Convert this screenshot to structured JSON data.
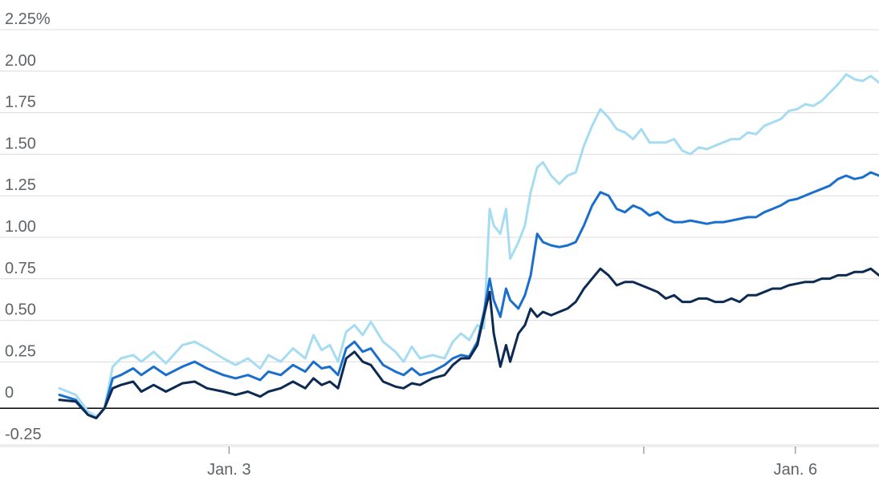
{
  "chart_data": {
    "type": "line",
    "title": "",
    "xlabel": "",
    "ylabel": "",
    "y_unit_suffix": "%",
    "ylim": [
      -0.25,
      2.25
    ],
    "xlim": [
      0,
      100
    ],
    "grid": true,
    "legend": "none",
    "y_ticks": [
      {
        "value": 2.25,
        "label": "2.25%"
      },
      {
        "value": 2.0,
        "label": "2.00"
      },
      {
        "value": 1.75,
        "label": "1.75"
      },
      {
        "value": 1.5,
        "label": "1.50"
      },
      {
        "value": 1.25,
        "label": "1.25"
      },
      {
        "value": 1.0,
        "label": "1.00"
      },
      {
        "value": 0.75,
        "label": "0.75"
      },
      {
        "value": 0.5,
        "label": "0.50"
      },
      {
        "value": 0.25,
        "label": "0.25"
      },
      {
        "value": 0,
        "label": "0"
      },
      {
        "value": -0.25,
        "label": "-0.25"
      }
    ],
    "x_ticks": [
      {
        "x": 20.7,
        "label": "Jan. 3"
      },
      {
        "x": 71.3,
        "label": ""
      },
      {
        "x": 89.8,
        "label": "Jan. 6"
      }
    ],
    "series": [
      {
        "color": "#a6dcf2",
        "points": [
          [
            0,
            0.12
          ],
          [
            2,
            0.08
          ],
          [
            3.5,
            -0.02
          ],
          [
            4.5,
            -0.05
          ],
          [
            5.5,
            0.0
          ],
          [
            6.5,
            0.25
          ],
          [
            7.5,
            0.3
          ],
          [
            9,
            0.32
          ],
          [
            10,
            0.28
          ],
          [
            11.5,
            0.34
          ],
          [
            13,
            0.27
          ],
          [
            15,
            0.38
          ],
          [
            16.5,
            0.4
          ],
          [
            18,
            0.36
          ],
          [
            20,
            0.3
          ],
          [
            21.5,
            0.26
          ],
          [
            23,
            0.3
          ],
          [
            24.5,
            0.24
          ],
          [
            25.5,
            0.32
          ],
          [
            27,
            0.28
          ],
          [
            28.5,
            0.36
          ],
          [
            30,
            0.3
          ],
          [
            31,
            0.44
          ],
          [
            32,
            0.35
          ],
          [
            33,
            0.38
          ],
          [
            34,
            0.28
          ],
          [
            35,
            0.46
          ],
          [
            36,
            0.5
          ],
          [
            37,
            0.44
          ],
          [
            38,
            0.52
          ],
          [
            39.5,
            0.4
          ],
          [
            41,
            0.34
          ],
          [
            42,
            0.28
          ],
          [
            43,
            0.37
          ],
          [
            44,
            0.3
          ],
          [
            45.5,
            0.32
          ],
          [
            47,
            0.3
          ],
          [
            48,
            0.4
          ],
          [
            49,
            0.45
          ],
          [
            50,
            0.41
          ],
          [
            51,
            0.5
          ],
          [
            51.8,
            0.48
          ],
          [
            52.5,
            1.2
          ],
          [
            53,
            1.1
          ],
          [
            53.8,
            1.05
          ],
          [
            54.5,
            1.2
          ],
          [
            55,
            0.9
          ],
          [
            56,
            1.0
          ],
          [
            56.8,
            1.1
          ],
          [
            57.5,
            1.3
          ],
          [
            58.3,
            1.45
          ],
          [
            59,
            1.48
          ],
          [
            60,
            1.4
          ],
          [
            61,
            1.35
          ],
          [
            62,
            1.4
          ],
          [
            63,
            1.42
          ],
          [
            64,
            1.58
          ],
          [
            65,
            1.7
          ],
          [
            66,
            1.8
          ],
          [
            67,
            1.75
          ],
          [
            68,
            1.68
          ],
          [
            69,
            1.66
          ],
          [
            70,
            1.62
          ],
          [
            71,
            1.68
          ],
          [
            72,
            1.6
          ],
          [
            73,
            1.6
          ],
          [
            74,
            1.6
          ],
          [
            75,
            1.62
          ],
          [
            76,
            1.55
          ],
          [
            77,
            1.53
          ],
          [
            78,
            1.57
          ],
          [
            79,
            1.56
          ],
          [
            80,
            1.58
          ],
          [
            81,
            1.6
          ],
          [
            82,
            1.62
          ],
          [
            83,
            1.62
          ],
          [
            84,
            1.66
          ],
          [
            85,
            1.65
          ],
          [
            86,
            1.7
          ],
          [
            87,
            1.72
          ],
          [
            88,
            1.74
          ],
          [
            89,
            1.79
          ],
          [
            90,
            1.8
          ],
          [
            91,
            1.83
          ],
          [
            92,
            1.82
          ],
          [
            93,
            1.85
          ],
          [
            94,
            1.9
          ],
          [
            95,
            1.95
          ],
          [
            96,
            2.01
          ],
          [
            97,
            1.98
          ],
          [
            98,
            1.97
          ],
          [
            99,
            2.0
          ],
          [
            100,
            1.96
          ]
        ]
      },
      {
        "color": "#1a6fcd",
        "points": [
          [
            0,
            0.08
          ],
          [
            2,
            0.05
          ],
          [
            3.5,
            -0.04
          ],
          [
            4.5,
            -0.06
          ],
          [
            5.5,
            0.0
          ],
          [
            6.5,
            0.18
          ],
          [
            7.5,
            0.2
          ],
          [
            9,
            0.24
          ],
          [
            10,
            0.2
          ],
          [
            11.5,
            0.25
          ],
          [
            13,
            0.2
          ],
          [
            15,
            0.25
          ],
          [
            16.5,
            0.28
          ],
          [
            18,
            0.24
          ],
          [
            20,
            0.2
          ],
          [
            21.5,
            0.18
          ],
          [
            23,
            0.2
          ],
          [
            24.5,
            0.17
          ],
          [
            25.5,
            0.22
          ],
          [
            27,
            0.2
          ],
          [
            28.5,
            0.26
          ],
          [
            30,
            0.22
          ],
          [
            31,
            0.28
          ],
          [
            32,
            0.24
          ],
          [
            33,
            0.25
          ],
          [
            34,
            0.2
          ],
          [
            35,
            0.36
          ],
          [
            36,
            0.4
          ],
          [
            37,
            0.34
          ],
          [
            38,
            0.36
          ],
          [
            39.5,
            0.26
          ],
          [
            41,
            0.22
          ],
          [
            42,
            0.2
          ],
          [
            43,
            0.24
          ],
          [
            44,
            0.2
          ],
          [
            45.5,
            0.22
          ],
          [
            47,
            0.26
          ],
          [
            48,
            0.3
          ],
          [
            49,
            0.32
          ],
          [
            50,
            0.31
          ],
          [
            51,
            0.4
          ],
          [
            51.8,
            0.58
          ],
          [
            52.5,
            0.78
          ],
          [
            53,
            0.65
          ],
          [
            53.8,
            0.55
          ],
          [
            54.5,
            0.72
          ],
          [
            55,
            0.65
          ],
          [
            56,
            0.6
          ],
          [
            56.8,
            0.68
          ],
          [
            57.5,
            0.8
          ],
          [
            58.3,
            1.05
          ],
          [
            59,
            1.0
          ],
          [
            60,
            0.98
          ],
          [
            61,
            0.97
          ],
          [
            62,
            0.98
          ],
          [
            63,
            1.0
          ],
          [
            64,
            1.1
          ],
          [
            65,
            1.22
          ],
          [
            66,
            1.3
          ],
          [
            67,
            1.28
          ],
          [
            68,
            1.2
          ],
          [
            69,
            1.18
          ],
          [
            70,
            1.22
          ],
          [
            71,
            1.2
          ],
          [
            72,
            1.16
          ],
          [
            73,
            1.18
          ],
          [
            74,
            1.14
          ],
          [
            75,
            1.12
          ],
          [
            76,
            1.12
          ],
          [
            77,
            1.13
          ],
          [
            78,
            1.12
          ],
          [
            79,
            1.11
          ],
          [
            80,
            1.12
          ],
          [
            81,
            1.12
          ],
          [
            82,
            1.13
          ],
          [
            83,
            1.14
          ],
          [
            84,
            1.15
          ],
          [
            85,
            1.15
          ],
          [
            86,
            1.18
          ],
          [
            87,
            1.2
          ],
          [
            88,
            1.22
          ],
          [
            89,
            1.25
          ],
          [
            90,
            1.26
          ],
          [
            91,
            1.28
          ],
          [
            92,
            1.3
          ],
          [
            93,
            1.32
          ],
          [
            94,
            1.34
          ],
          [
            95,
            1.38
          ],
          [
            96,
            1.4
          ],
          [
            97,
            1.38
          ],
          [
            98,
            1.39
          ],
          [
            99,
            1.42
          ],
          [
            100,
            1.4
          ]
        ]
      },
      {
        "color": "#0d2b52",
        "points": [
          [
            0,
            0.05
          ],
          [
            2,
            0.04
          ],
          [
            3.5,
            -0.04
          ],
          [
            4.5,
            -0.06
          ],
          [
            5.5,
            0.0
          ],
          [
            6.5,
            0.12
          ],
          [
            7.5,
            0.14
          ],
          [
            9,
            0.16
          ],
          [
            10,
            0.1
          ],
          [
            11.5,
            0.14
          ],
          [
            13,
            0.1
          ],
          [
            15,
            0.15
          ],
          [
            16.5,
            0.16
          ],
          [
            18,
            0.12
          ],
          [
            20,
            0.1
          ],
          [
            21.5,
            0.08
          ],
          [
            23,
            0.1
          ],
          [
            24.5,
            0.07
          ],
          [
            25.5,
            0.1
          ],
          [
            27,
            0.12
          ],
          [
            28.5,
            0.16
          ],
          [
            30,
            0.12
          ],
          [
            31,
            0.18
          ],
          [
            32,
            0.14
          ],
          [
            33,
            0.16
          ],
          [
            34,
            0.12
          ],
          [
            35,
            0.3
          ],
          [
            36,
            0.34
          ],
          [
            37,
            0.28
          ],
          [
            38,
            0.26
          ],
          [
            39.5,
            0.16
          ],
          [
            41,
            0.13
          ],
          [
            42,
            0.12
          ],
          [
            43,
            0.15
          ],
          [
            44,
            0.14
          ],
          [
            45.5,
            0.18
          ],
          [
            47,
            0.2
          ],
          [
            48,
            0.26
          ],
          [
            49,
            0.3
          ],
          [
            50,
            0.3
          ],
          [
            51,
            0.38
          ],
          [
            51.8,
            0.56
          ],
          [
            52.5,
            0.7
          ],
          [
            53,
            0.45
          ],
          [
            53.8,
            0.25
          ],
          [
            54.5,
            0.38
          ],
          [
            55,
            0.28
          ],
          [
            56,
            0.45
          ],
          [
            56.8,
            0.5
          ],
          [
            57.5,
            0.6
          ],
          [
            58.3,
            0.55
          ],
          [
            59,
            0.58
          ],
          [
            60,
            0.56
          ],
          [
            61,
            0.58
          ],
          [
            62,
            0.6
          ],
          [
            63,
            0.64
          ],
          [
            64,
            0.72
          ],
          [
            65,
            0.78
          ],
          [
            66,
            0.84
          ],
          [
            67,
            0.8
          ],
          [
            68,
            0.74
          ],
          [
            69,
            0.76
          ],
          [
            70,
            0.76
          ],
          [
            71,
            0.74
          ],
          [
            72,
            0.72
          ],
          [
            73,
            0.7
          ],
          [
            74,
            0.66
          ],
          [
            75,
            0.68
          ],
          [
            76,
            0.64
          ],
          [
            77,
            0.64
          ],
          [
            78,
            0.66
          ],
          [
            79,
            0.66
          ],
          [
            80,
            0.64
          ],
          [
            81,
            0.64
          ],
          [
            82,
            0.66
          ],
          [
            83,
            0.64
          ],
          [
            84,
            0.68
          ],
          [
            85,
            0.68
          ],
          [
            86,
            0.7
          ],
          [
            87,
            0.72
          ],
          [
            88,
            0.72
          ],
          [
            89,
            0.74
          ],
          [
            90,
            0.75
          ],
          [
            91,
            0.76
          ],
          [
            92,
            0.76
          ],
          [
            93,
            0.78
          ],
          [
            94,
            0.78
          ],
          [
            95,
            0.8
          ],
          [
            96,
            0.8
          ],
          [
            97,
            0.82
          ],
          [
            98,
            0.82
          ],
          [
            99,
            0.84
          ],
          [
            100,
            0.8
          ]
        ]
      }
    ]
  }
}
